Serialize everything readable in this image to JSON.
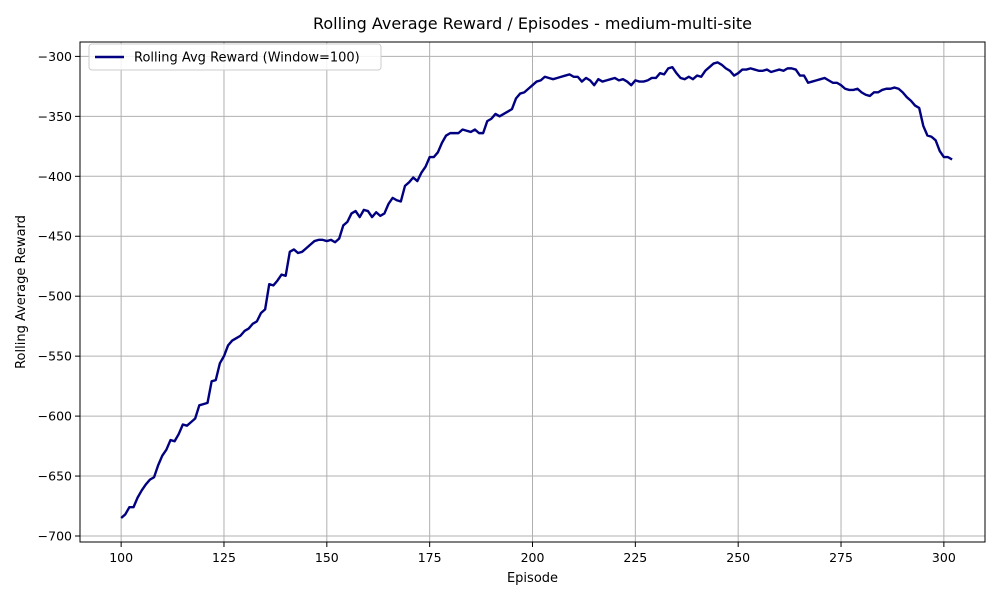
{
  "chart_data": {
    "type": "line",
    "title": "Rolling Average Reward / Episodes - medium-multi-site",
    "xlabel": "Episode",
    "ylabel": "Rolling Average Reward",
    "xlim": [
      90,
      310
    ],
    "ylim": [
      -705,
      -288
    ],
    "xticks": [
      100,
      125,
      150,
      175,
      200,
      225,
      250,
      275,
      300
    ],
    "yticks": [
      -700,
      -650,
      -600,
      -550,
      -500,
      -450,
      -400,
      -350,
      -300
    ],
    "grid": true,
    "legend_position": "top-left",
    "series": [
      {
        "name": "Rolling Avg Reward (Window=100)",
        "color": "#000080",
        "x_start": 100,
        "x_step": 1,
        "values": [
          -685,
          -682,
          -676,
          -676,
          -668,
          -662,
          -657,
          -653,
          -651,
          -641,
          -633,
          -628,
          -620,
          -621,
          -615,
          -607,
          -608,
          -605,
          -602,
          -591,
          -590,
          -589,
          -571,
          -570,
          -556,
          -550,
          -541,
          -537,
          -535,
          -533,
          -529,
          -527,
          -523,
          -521,
          -514,
          -511,
          -490,
          -491,
          -487,
          -482,
          -483,
          -463,
          -461,
          -464,
          -463,
          -460,
          -457,
          -454,
          -453,
          -453,
          -454,
          -453,
          -455,
          -452,
          -441,
          -438,
          -431,
          -429,
          -434,
          -428,
          -429,
          -434,
          -430,
          -433,
          -431,
          -423,
          -418,
          -420,
          -421,
          -408,
          -405,
          -401,
          -404,
          -397,
          -392,
          -384,
          -384,
          -380,
          -372,
          -366,
          -364,
          -364,
          -364,
          -361,
          -362,
          -363,
          -361,
          -364,
          -364,
          -354,
          -352,
          -348,
          -350,
          -348,
          -346,
          -344,
          -335,
          -331,
          -330,
          -327,
          -324,
          -321,
          -320,
          -317,
          -318,
          -319,
          -318,
          -317,
          -316,
          -315,
          -317,
          -317,
          -321,
          -318,
          -320,
          -324,
          -319,
          -321,
          -320,
          -319,
          -318,
          -320,
          -319,
          -321,
          -324,
          -320,
          -321,
          -321,
          -320,
          -318,
          -318,
          -314,
          -315,
          -310,
          -309,
          -314,
          -318,
          -319,
          -317,
          -319,
          -316,
          -317,
          -312,
          -309,
          -306,
          -305,
          -307,
          -310,
          -312,
          -316,
          -314,
          -311,
          -311,
          -310,
          -311,
          -312,
          -312,
          -311,
          -313,
          -312,
          -311,
          -312,
          -310,
          -310,
          -311,
          -316,
          -316,
          -322,
          -321,
          -320,
          -319,
          -318,
          -320,
          -322,
          -322,
          -324,
          -327,
          -328,
          -328,
          -327,
          -330,
          -332,
          -333,
          -330,
          -330,
          -328,
          -327,
          -327,
          -326,
          -327,
          -330,
          -334,
          -337,
          -341,
          -343,
          -358,
          -366,
          -367,
          -370,
          -379,
          -384,
          -384,
          -386
        ]
      }
    ]
  }
}
